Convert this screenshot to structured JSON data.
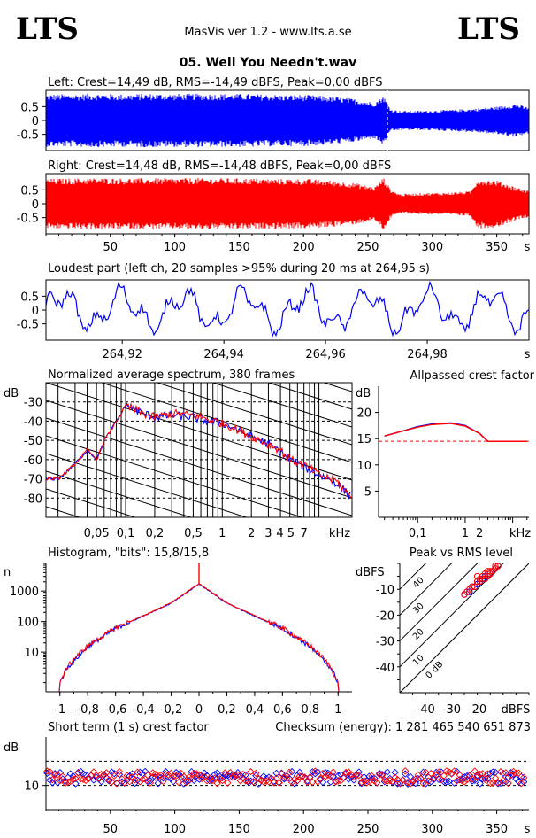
{
  "header": {
    "logo_left": "LTS",
    "logo_right": "LTS",
    "app_title": "MasVis ver 1.2 - www.lts.a.se",
    "file_title": "05. Well You Needn't.wav"
  },
  "chart_data": [
    {
      "id": "left",
      "type": "area",
      "title": "Left: Crest=14,49 dB, RMS=-14,49 dBFS, Peak=0,00 dBFS",
      "ylim": [
        -1,
        1
      ],
      "xlim": [
        0,
        375
      ],
      "yticks": [
        "0.5",
        "0",
        "-0.5"
      ],
      "color": "#0000ff",
      "envelope": {
        "t": [
          0,
          20,
          40,
          60,
          80,
          100,
          120,
          140,
          160,
          180,
          200,
          220,
          240,
          255,
          262,
          268,
          275,
          290,
          310,
          330,
          350,
          365,
          372
        ],
        "amp": [
          0.95,
          0.95,
          0.97,
          0.95,
          0.97,
          0.96,
          0.97,
          0.96,
          0.96,
          0.93,
          0.93,
          0.88,
          0.78,
          0.65,
          0.9,
          0.4,
          0.35,
          0.35,
          0.38,
          0.42,
          0.5,
          0.6,
          0.5
        ]
      }
    },
    {
      "id": "right",
      "type": "area",
      "title": "Right: Crest=14,48 dB, RMS=-14,48 dBFS, Peak=0,00 dBFS",
      "ylim": [
        -1,
        1
      ],
      "xlim": [
        0,
        375
      ],
      "yticks": [
        "0.5",
        "0",
        "-0.5"
      ],
      "xticks": [
        "50",
        "100",
        "150",
        "200",
        "250",
        "300",
        "350",
        "s"
      ],
      "color": "#ff0000",
      "envelope": {
        "t": [
          0,
          20,
          40,
          60,
          80,
          100,
          120,
          140,
          160,
          180,
          200,
          220,
          240,
          255,
          262,
          268,
          275,
          290,
          310,
          330,
          335,
          350,
          365,
          372
        ],
        "amp": [
          0.9,
          0.92,
          0.93,
          0.92,
          0.92,
          0.92,
          0.93,
          0.92,
          0.92,
          0.9,
          0.9,
          0.85,
          0.75,
          0.6,
          0.95,
          0.5,
          0.35,
          0.38,
          0.4,
          0.45,
          0.9,
          0.85,
          0.6,
          0.5
        ]
      }
    },
    {
      "id": "loudest",
      "type": "line",
      "title": "Loudest part (left  ch, 20 samples >95% during 20 ms at 264,95 s)",
      "ylim": [
        -1,
        1
      ],
      "xlim": [
        264.905,
        265.0
      ],
      "yticks": [
        "0.5",
        "0",
        "-0.5"
      ],
      "xticks": [
        "264,92",
        "264,94",
        "264,96",
        "264,98",
        "s"
      ],
      "color": "#0000ff"
    },
    {
      "id": "spectrum",
      "type": "line",
      "title": "Normalized average spectrum, 380 frames",
      "ylabel": "dB",
      "yticks": [
        "-30",
        "-40",
        "-50",
        "-60",
        "-70",
        "-80"
      ],
      "xticks": [
        "0,05",
        "0,1",
        "0,2",
        "0,5",
        "1",
        "2",
        "3",
        "4 5",
        "7",
        "kHz"
      ],
      "ylim": [
        -90,
        -20
      ],
      "series": [
        {
          "color": "#0000ff",
          "freq_khz": [
            0.02,
            0.03,
            0.04,
            0.05,
            0.06,
            0.08,
            0.1,
            0.15,
            0.2,
            0.3,
            0.5,
            0.7,
            1,
            1.5,
            2,
            3,
            4,
            5,
            7,
            10,
            15,
            20
          ],
          "db": [
            -70,
            -62,
            -55,
            -60,
            -50,
            -40,
            -32,
            -36,
            -38,
            -37,
            -38,
            -40,
            -41,
            -45,
            -48,
            -52,
            -56,
            -60,
            -64,
            -68,
            -72,
            -78
          ]
        },
        {
          "color": "#ff0000",
          "freq_khz": [
            0.02,
            0.03,
            0.04,
            0.05,
            0.06,
            0.08,
            0.1,
            0.15,
            0.2,
            0.3,
            0.5,
            0.7,
            1,
            1.5,
            2,
            3,
            4,
            5,
            7,
            10,
            15,
            20
          ],
          "db": [
            -70,
            -62,
            -55,
            -60,
            -50,
            -40,
            -32,
            -36,
            -38,
            -36,
            -37,
            -39,
            -41,
            -45,
            -48,
            -52,
            -55,
            -60,
            -63,
            -68,
            -71,
            -78
          ]
        }
      ]
    },
    {
      "id": "allpass",
      "type": "line",
      "title": "Allpassed crest factor",
      "ylabel": "dB",
      "yticks": [
        "20",
        "15",
        "10",
        "5"
      ],
      "xticks": [
        "0,1",
        "1",
        "2",
        "kHz"
      ],
      "ylim": [
        0,
        25
      ],
      "reference_db": 14.5,
      "series": [
        {
          "color": "#0000ff",
          "freq_khz": [
            0.02,
            0.05,
            0.1,
            0.2,
            0.5,
            1,
            2,
            3,
            5,
            10,
            20
          ],
          "db": [
            15.5,
            16.5,
            17.3,
            17.8,
            18,
            17.5,
            16,
            14.5,
            14.5,
            14.5,
            14.5
          ]
        },
        {
          "color": "#ff0000",
          "freq_khz": [
            0.02,
            0.05,
            0.1,
            0.2,
            0.5,
            1,
            2,
            3,
            5,
            10,
            20
          ],
          "db": [
            15.5,
            16.5,
            17.2,
            17.7,
            17.9,
            17.4,
            16,
            14.5,
            14.5,
            14.5,
            14.5
          ]
        }
      ]
    },
    {
      "id": "histogram",
      "type": "line",
      "title": "Histogram, \"bits\": 15,8/15,8",
      "ylabel": "n",
      "yticks": [
        "1000",
        "100",
        "10"
      ],
      "xticks": [
        "-1",
        "-0,8",
        "-0,6",
        "-0,4",
        "-0,2",
        "0",
        "0,2",
        "0,4",
        "0,6",
        "0,8",
        "1"
      ],
      "xlim": [
        -1.1,
        1.1
      ],
      "peak_count": 1700,
      "series": [
        {
          "color": "#0000ff",
          "x": [
            -1,
            -0.95,
            -0.9,
            -0.8,
            -0.6,
            -0.4,
            -0.2,
            0,
            0.2,
            0.4,
            0.6,
            0.8,
            0.9,
            0.95,
            1
          ],
          "n": [
            1,
            3,
            5,
            15,
            60,
            150,
            400,
            1700,
            400,
            150,
            60,
            15,
            5,
            3,
            1
          ]
        },
        {
          "color": "#ff0000",
          "x": [
            -1,
            -0.95,
            -0.9,
            -0.8,
            -0.6,
            -0.4,
            -0.2,
            0,
            0.2,
            0.4,
            0.6,
            0.8,
            0.9,
            0.95,
            1
          ],
          "n": [
            1,
            3,
            6,
            16,
            62,
            155,
            410,
            1750,
            410,
            155,
            62,
            16,
            6,
            3,
            1
          ]
        }
      ]
    },
    {
      "id": "peak_rms",
      "type": "scatter",
      "title": "Peak vs RMS level",
      "ylabel": "dBFS",
      "yticks": [
        "-10",
        "-20",
        "-30",
        "-40"
      ],
      "xticks": [
        "-40",
        "-30",
        "-20",
        "dBFS"
      ],
      "xlim": [
        -50,
        0
      ],
      "ylim": [
        -50,
        0
      ],
      "diagonal_labels": [
        "40",
        "30",
        "20",
        "10",
        "0 dB"
      ],
      "series": [
        {
          "color": "#0000ff",
          "points": [
            [
              -24,
              -11
            ],
            [
              -22,
              -9
            ],
            [
              -20,
              -8
            ],
            [
              -18,
              -6
            ],
            [
              -16,
              -5
            ],
            [
              -15,
              -4
            ],
            [
              -14,
              -3
            ],
            [
              -17,
              -5
            ],
            [
              -19,
              -7
            ],
            [
              -21,
              -9
            ],
            [
              -13,
              -2
            ],
            [
              -12,
              -1
            ],
            [
              -23,
              -11
            ],
            [
              -25,
              -12
            ]
          ]
        },
        {
          "color": "#ff0000",
          "points": [
            [
              -25,
              -12
            ],
            [
              -23,
              -10
            ],
            [
              -21,
              -9
            ],
            [
              -19,
              -7
            ],
            [
              -17,
              -6
            ],
            [
              -16,
              -5
            ],
            [
              -15,
              -4
            ],
            [
              -14,
              -3
            ],
            [
              -13,
              -2
            ],
            [
              -12,
              -1
            ],
            [
              -18,
              -5
            ],
            [
              -20,
              -7
            ],
            [
              -22,
              -9
            ],
            [
              -24,
              -11
            ],
            [
              -15,
              -3
            ],
            [
              -16,
              -3
            ],
            [
              -17,
              -4
            ],
            [
              -19,
              -6
            ],
            [
              -20,
              -5
            ],
            [
              -13,
              -1
            ]
          ]
        }
      ]
    },
    {
      "id": "short_term",
      "type": "scatter",
      "title": "Short term (1 s) crest factor",
      "checksum_text": "Checksum (energy):  1 281 465 540 651 873",
      "ylabel": "dB",
      "yticks": [
        "10"
      ],
      "xticks": [
        "50",
        "100",
        "150",
        "200",
        "250",
        "300",
        "350",
        "s"
      ],
      "xlim": [
        0,
        375
      ],
      "ylim": [
        5,
        20
      ],
      "ref_lines_db": [
        15,
        10
      ],
      "series": [
        {
          "color": "#0000ff",
          "mean_db": 11.6
        },
        {
          "color": "#ff0000",
          "mean_db": 11.7
        }
      ]
    }
  ]
}
